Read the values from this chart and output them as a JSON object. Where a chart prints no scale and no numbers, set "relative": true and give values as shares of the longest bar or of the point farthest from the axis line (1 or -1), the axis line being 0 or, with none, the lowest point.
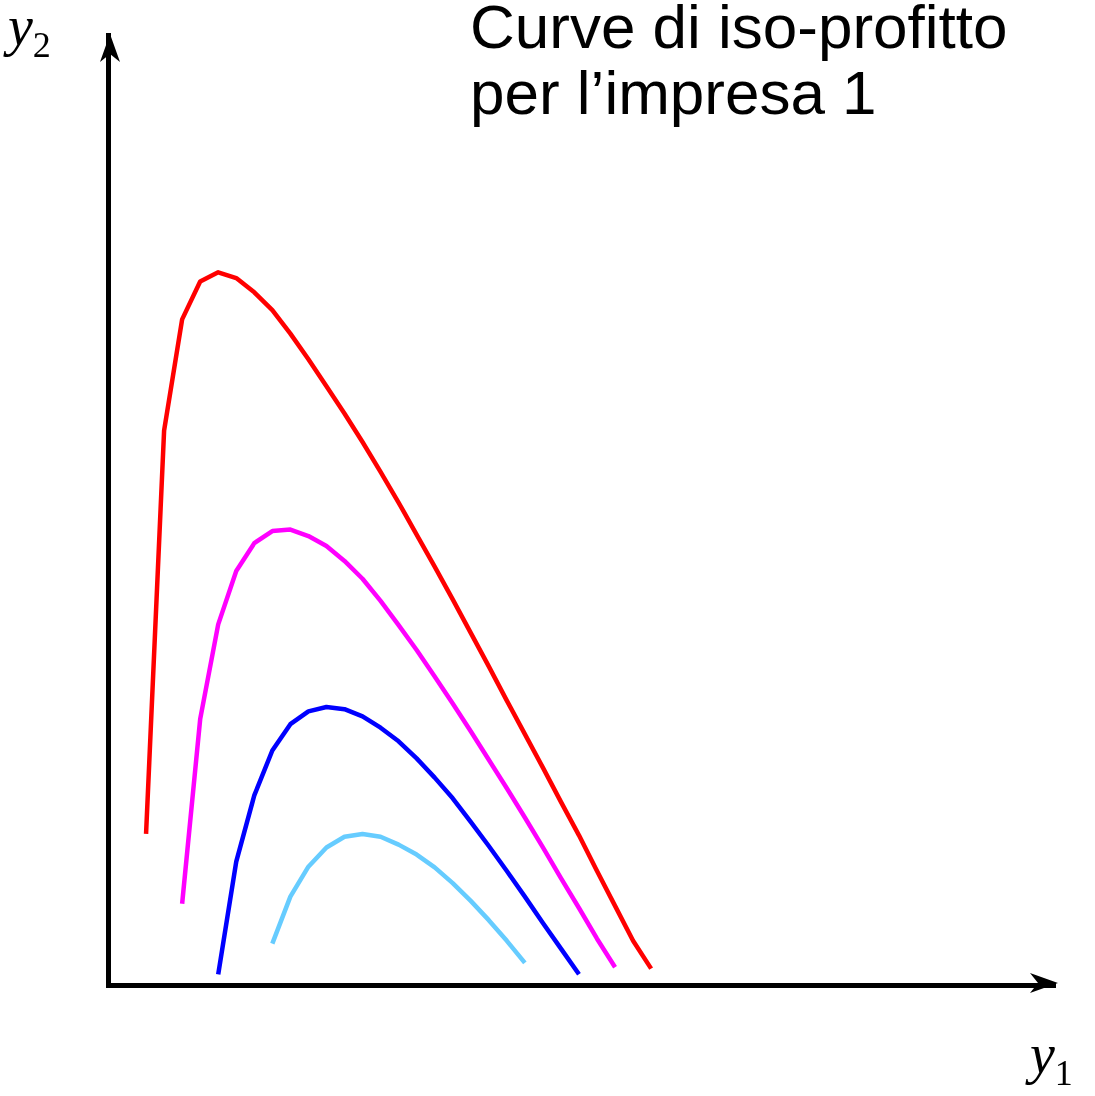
{
  "chart_data": {
    "type": "line",
    "title": "Curve di iso-profitto per l’impresa 1",
    "annotations": [
      "y$_{1}$"
    ],
    "ylabel": "y$_{2}$",
    "relative": true,
    "legend": false,
    "marker": "none",
    "categories": [
      null,
      null,
      null,
      null,
      null,
      null,
      null,
      null,
      null,
      null,
      null,
      null,
      null,
      null,
      null,
      null,
      null,
      null,
      null,
      null,
      null,
      null,
      null,
      null,
      null,
      null,
      null,
      null,
      null
    ],
    "series": [
      {
        "color": "#ff0000",
        "values": [
          0.212,
          0.778,
          0.934,
          0.987,
          1,
          0.992,
          0.972,
          0.947,
          0.914,
          0.878,
          0.84,
          0.802,
          0.762,
          0.72,
          0.677,
          0.632,
          0.587,
          0.541,
          0.494,
          0.447,
          0.399,
          0.352,
          0.305,
          0.257,
          0.21,
          0.16,
          0.111,
          0.062,
          0.023
        ]
      },
      {
        "color": "#ff00ff",
        "values": [
          null,
          null,
          0.114,
          0.373,
          0.506,
          0.581,
          0.62,
          0.637,
          0.639,
          0.63,
          0.616,
          0.595,
          0.57,
          0.539,
          0.505,
          0.47,
          0.433,
          0.395,
          0.356,
          0.316,
          0.276,
          0.235,
          0.193,
          0.15,
          0.108,
          0.065,
          0.025,
          null,
          null
        ]
      },
      {
        "color": "#0000ff",
        "values": [
          null,
          null,
          null,
          null,
          0.015,
          0.173,
          0.266,
          0.329,
          0.366,
          0.384,
          0.39,
          0.387,
          0.377,
          0.361,
          0.342,
          0.318,
          0.291,
          0.262,
          0.229,
          0.195,
          0.16,
          0.124,
          0.087,
          0.051,
          0.015,
          null,
          null,
          null,
          null
        ]
      },
      {
        "color": "#66ccff",
        "values": [
          null,
          null,
          null,
          null,
          null,
          null,
          null,
          0.058,
          0.124,
          0.166,
          0.193,
          0.208,
          0.212,
          0.208,
          0.197,
          0.183,
          0.165,
          0.143,
          0.118,
          0.091,
          0.062,
          0.031,
          null,
          null,
          null,
          null,
          null,
          null,
          null
        ]
      }
    ]
  }
}
